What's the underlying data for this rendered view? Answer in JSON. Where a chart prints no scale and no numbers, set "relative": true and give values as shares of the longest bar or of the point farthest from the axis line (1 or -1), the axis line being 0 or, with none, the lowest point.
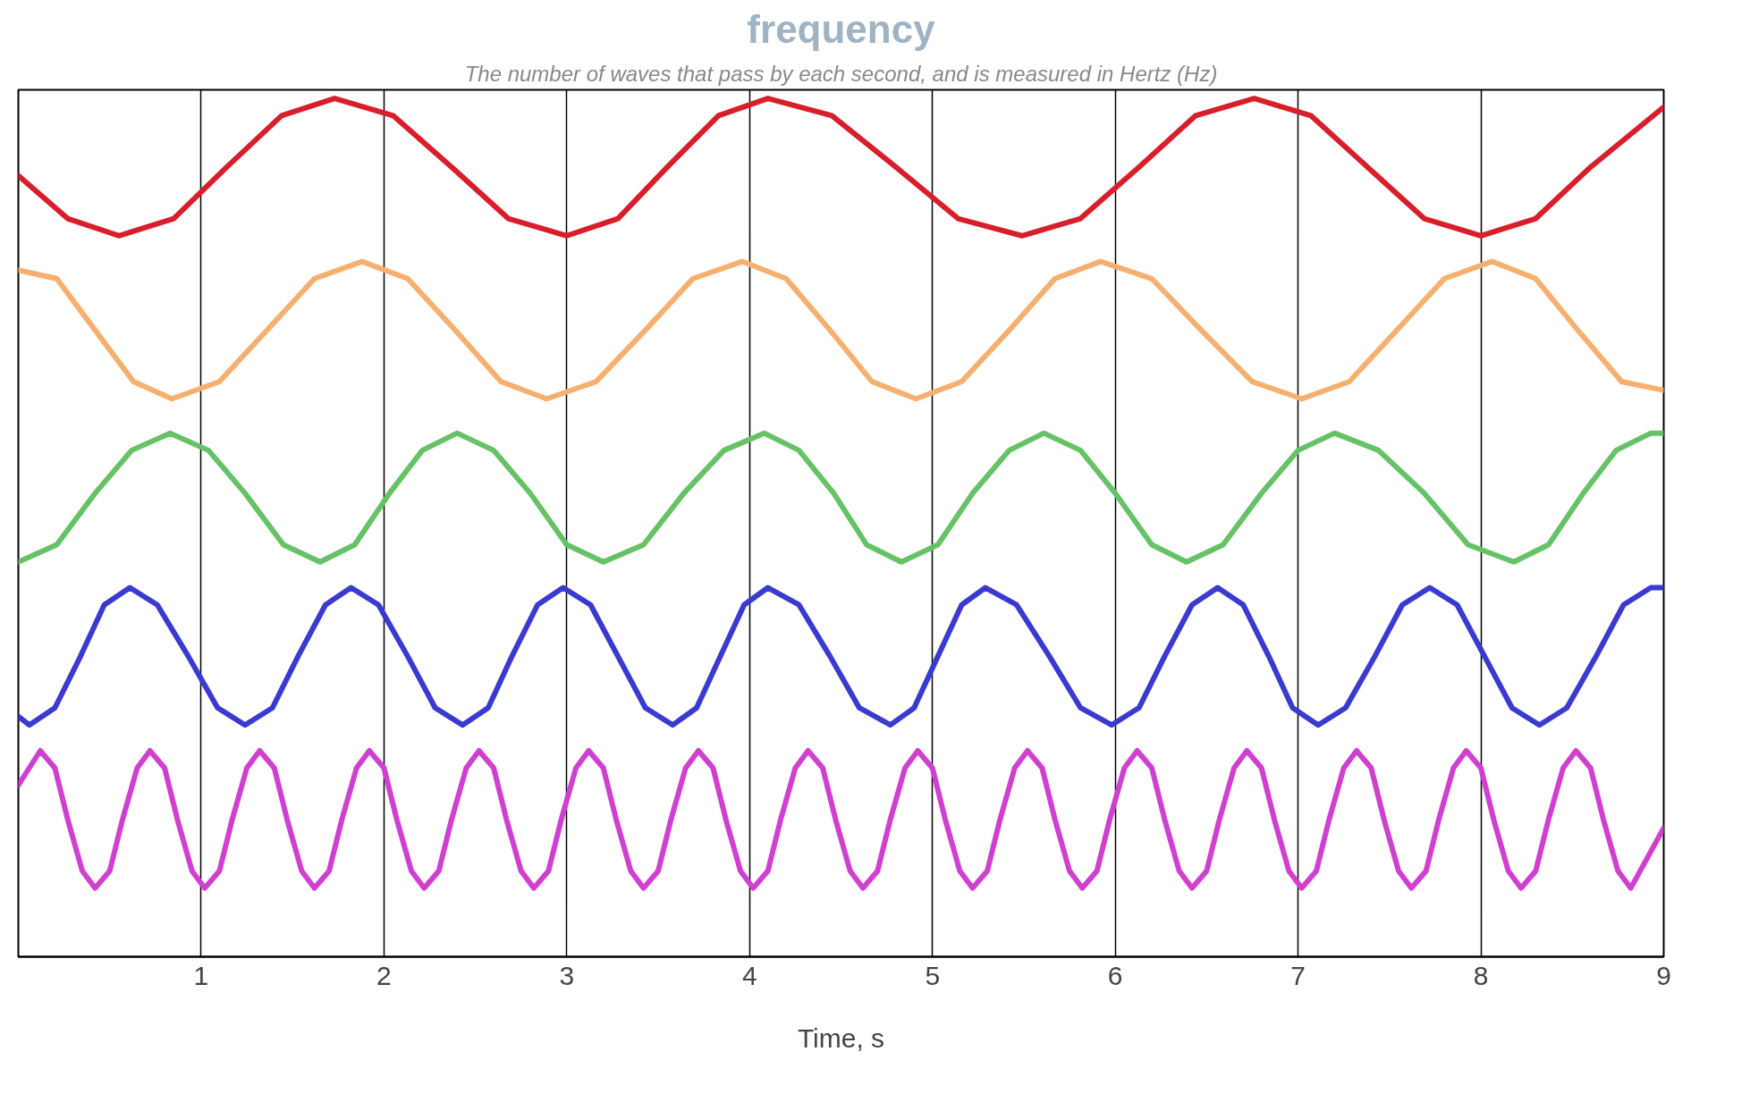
{
  "chart_data": {
    "type": "line",
    "title": "frequency",
    "subtitle": "The number of waves that pass by each second, and is measured in Hertz (Hz)",
    "xlabel": "Time, s",
    "relative": true,
    "xlim": [
      0,
      9
    ],
    "xticks": [
      1,
      2,
      3,
      4,
      5,
      6,
      7,
      8,
      9
    ],
    "grid": "x",
    "marker": "none",
    "line_style": "solid",
    "series": [
      {
        "color": "#d81e2a",
        "x": [
          0,
          0.27,
          0.55,
          0.85,
          1.14,
          1.44,
          1.73,
          2.05,
          2.37,
          2.68,
          3.0,
          3.28,
          3.55,
          3.83,
          4.1,
          4.45,
          4.8,
          5.14,
          5.49,
          5.81,
          6.13,
          6.44,
          6.76,
          7.07,
          7.38,
          7.69,
          8.0,
          8.3,
          8.6,
          9.0
        ],
        "values": [
          0.91,
          0.86,
          0.84,
          0.86,
          0.92,
          0.98,
          1.0,
          0.98,
          0.92,
          0.86,
          0.84,
          0.86,
          0.92,
          0.98,
          1.0,
          0.98,
          0.92,
          0.86,
          0.84,
          0.86,
          0.92,
          0.98,
          1.0,
          0.98,
          0.92,
          0.86,
          0.84,
          0.86,
          0.92,
          0.99
        ]
      },
      {
        "color": "#f5b070",
        "x": [
          0,
          0.21,
          0.42,
          0.63,
          0.84,
          1.1,
          1.36,
          1.62,
          1.88,
          2.13,
          2.39,
          2.64,
          2.89,
          3.16,
          3.43,
          3.69,
          3.96,
          4.2,
          4.44,
          4.67,
          4.91,
          5.16,
          5.42,
          5.67,
          5.92,
          6.2,
          6.47,
          6.75,
          7.02,
          7.28,
          7.54,
          7.8,
          8.06,
          8.3,
          8.53,
          8.77,
          9.0
        ],
        "values": [
          0.8,
          0.79,
          0.73,
          0.67,
          0.65,
          0.67,
          0.73,
          0.79,
          0.81,
          0.79,
          0.73,
          0.67,
          0.65,
          0.67,
          0.73,
          0.79,
          0.81,
          0.79,
          0.73,
          0.67,
          0.65,
          0.67,
          0.73,
          0.79,
          0.81,
          0.79,
          0.73,
          0.67,
          0.65,
          0.67,
          0.73,
          0.79,
          0.81,
          0.79,
          0.73,
          0.67,
          0.66
        ]
      },
      {
        "color": "#66c266",
        "x": [
          0,
          0.21,
          0.42,
          0.62,
          0.83,
          1.04,
          1.24,
          1.45,
          1.65,
          1.84,
          2.03,
          2.21,
          2.4,
          2.6,
          2.8,
          3.0,
          3.2,
          3.42,
          3.64,
          3.86,
          4.08,
          4.27,
          4.46,
          4.64,
          4.83,
          5.03,
          5.22,
          5.42,
          5.61,
          5.81,
          6.0,
          6.2,
          6.39,
          6.59,
          6.8,
          7.0,
          7.2,
          7.44,
          7.69,
          7.93,
          8.18,
          8.37,
          8.56,
          8.74,
          8.93,
          9.0
        ],
        "values": [
          0.46,
          0.48,
          0.54,
          0.59,
          0.61,
          0.59,
          0.54,
          0.48,
          0.46,
          0.48,
          0.54,
          0.59,
          0.61,
          0.59,
          0.54,
          0.48,
          0.46,
          0.48,
          0.54,
          0.59,
          0.61,
          0.59,
          0.54,
          0.48,
          0.46,
          0.48,
          0.54,
          0.59,
          0.61,
          0.59,
          0.54,
          0.48,
          0.46,
          0.48,
          0.54,
          0.59,
          0.61,
          0.59,
          0.54,
          0.48,
          0.46,
          0.48,
          0.54,
          0.59,
          0.61,
          0.61
        ]
      },
      {
        "color": "#3a3ad0",
        "x": [
          0,
          0.06,
          0.2,
          0.34,
          0.47,
          0.61,
          0.76,
          0.93,
          1.09,
          1.24,
          1.39,
          1.53,
          1.68,
          1.82,
          1.97,
          2.13,
          2.28,
          2.43,
          2.57,
          2.7,
          2.84,
          2.98,
          3.13,
          3.28,
          3.43,
          3.58,
          3.71,
          3.84,
          3.97,
          4.1,
          4.27,
          4.44,
          4.6,
          4.77,
          4.9,
          5.03,
          5.16,
          5.29,
          5.46,
          5.64,
          5.81,
          5.98,
          6.13,
          6.27,
          6.42,
          6.56,
          6.7,
          6.84,
          6.97,
          7.11,
          7.26,
          7.42,
          7.57,
          7.72,
          7.87,
          8.02,
          8.17,
          8.32,
          8.47,
          8.63,
          8.78,
          8.93,
          9.0
        ],
        "values": [
          0.28,
          0.27,
          0.29,
          0.35,
          0.41,
          0.43,
          0.41,
          0.35,
          0.29,
          0.27,
          0.29,
          0.35,
          0.41,
          0.43,
          0.41,
          0.35,
          0.29,
          0.27,
          0.29,
          0.35,
          0.41,
          0.43,
          0.41,
          0.35,
          0.29,
          0.27,
          0.29,
          0.35,
          0.41,
          0.43,
          0.41,
          0.35,
          0.29,
          0.27,
          0.29,
          0.35,
          0.41,
          0.43,
          0.41,
          0.35,
          0.29,
          0.27,
          0.29,
          0.35,
          0.41,
          0.43,
          0.41,
          0.35,
          0.29,
          0.27,
          0.29,
          0.35,
          0.41,
          0.43,
          0.41,
          0.35,
          0.29,
          0.27,
          0.29,
          0.35,
          0.41,
          0.43,
          0.43
        ]
      },
      {
        "color": "#d040d0",
        "x": [
          0,
          0.12,
          0.2,
          0.27,
          0.35,
          0.42,
          0.5,
          0.57,
          0.65,
          0.72,
          0.8,
          0.87,
          0.95,
          1.02,
          1.1,
          1.17,
          1.25,
          1.32,
          1.4,
          1.47,
          1.55,
          1.62,
          1.7,
          1.77,
          1.85,
          1.92,
          2.0,
          2.07,
          2.15,
          2.22,
          2.3,
          2.37,
          2.45,
          2.52,
          2.6,
          2.67,
          2.75,
          2.82,
          2.9,
          2.97,
          3.05,
          3.12,
          3.2,
          3.27,
          3.35,
          3.42,
          3.5,
          3.57,
          3.65,
          3.72,
          3.8,
          3.87,
          3.95,
          4.02,
          4.1,
          4.17,
          4.25,
          4.32,
          4.4,
          4.47,
          4.55,
          4.62,
          4.7,
          4.77,
          4.85,
          4.92,
          5.0,
          5.07,
          5.15,
          5.22,
          5.3,
          5.37,
          5.45,
          5.52,
          5.6,
          5.67,
          5.75,
          5.82,
          5.9,
          5.97,
          6.05,
          6.12,
          6.2,
          6.27,
          6.35,
          6.42,
          6.5,
          6.57,
          6.65,
          6.72,
          6.8,
          6.87,
          6.95,
          7.02,
          7.1,
          7.17,
          7.25,
          7.32,
          7.4,
          7.47,
          7.55,
          7.62,
          7.7,
          7.77,
          7.85,
          7.92,
          8.0,
          8.07,
          8.15,
          8.22,
          8.3,
          8.37,
          8.45,
          8.52,
          8.6,
          8.67,
          8.75,
          8.82,
          9.0
        ],
        "values": [
          0.2,
          0.24,
          0.22,
          0.16,
          0.1,
          0.08,
          0.1,
          0.16,
          0.22,
          0.24,
          0.22,
          0.16,
          0.1,
          0.08,
          0.1,
          0.16,
          0.22,
          0.24,
          0.22,
          0.16,
          0.1,
          0.08,
          0.1,
          0.16,
          0.22,
          0.24,
          0.22,
          0.16,
          0.1,
          0.08,
          0.1,
          0.16,
          0.22,
          0.24,
          0.22,
          0.16,
          0.1,
          0.08,
          0.1,
          0.16,
          0.22,
          0.24,
          0.22,
          0.16,
          0.1,
          0.08,
          0.1,
          0.16,
          0.22,
          0.24,
          0.22,
          0.16,
          0.1,
          0.08,
          0.1,
          0.16,
          0.22,
          0.24,
          0.22,
          0.16,
          0.1,
          0.08,
          0.1,
          0.16,
          0.22,
          0.24,
          0.22,
          0.16,
          0.1,
          0.08,
          0.1,
          0.16,
          0.22,
          0.24,
          0.22,
          0.16,
          0.1,
          0.08,
          0.1,
          0.16,
          0.22,
          0.24,
          0.22,
          0.16,
          0.1,
          0.08,
          0.1,
          0.16,
          0.22,
          0.24,
          0.22,
          0.16,
          0.1,
          0.08,
          0.1,
          0.16,
          0.22,
          0.24,
          0.22,
          0.16,
          0.1,
          0.08,
          0.1,
          0.16,
          0.22,
          0.24,
          0.22,
          0.16,
          0.1,
          0.08,
          0.1,
          0.16,
          0.22,
          0.24,
          0.22,
          0.16,
          0.1,
          0.08,
          0.15
        ]
      }
    ]
  }
}
